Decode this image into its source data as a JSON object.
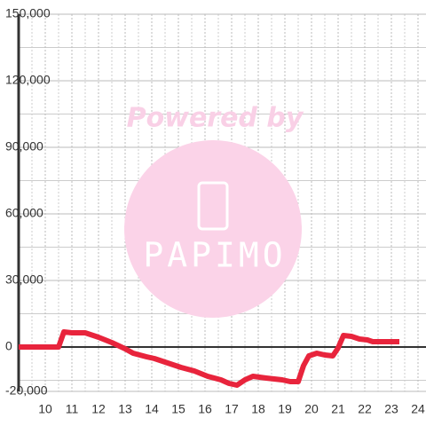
{
  "chart_data": {
    "type": "line",
    "watermark": {
      "top": "Powered by",
      "logo": "PAPIMO"
    },
    "x": [
      9,
      10.5,
      10.7,
      11,
      11.5,
      12,
      12.5,
      13,
      13.3,
      13.8,
      14.1,
      14.6,
      15.1,
      15.6,
      16.1,
      16.6,
      16.9,
      17.2,
      17.5,
      17.8,
      18.3,
      18.9,
      19.2,
      19.5,
      19.7,
      19.9,
      20.2,
      20.5,
      20.8,
      21,
      21.2,
      21.5,
      21.8,
      22.1,
      22.3,
      23.3
    ],
    "series": [
      {
        "color": "#e8243c",
        "values": [
          0,
          0,
          6800,
          6400,
          6400,
          4400,
          2000,
          -800,
          -2800,
          -4400,
          -5200,
          -7200,
          -9200,
          -10800,
          -13200,
          -14800,
          -16400,
          -17200,
          -14800,
          -13200,
          -14000,
          -14800,
          -15600,
          -15600,
          -8400,
          -4000,
          -2800,
          -3600,
          -4000,
          -400,
          5200,
          4800,
          3600,
          3200,
          2400,
          2400
        ]
      }
    ],
    "xlim": [
      9,
      24.3
    ],
    "ylim": [
      -20000,
      150000
    ],
    "xticks": [
      10,
      11,
      12,
      13,
      14,
      15,
      16,
      17,
      18,
      19,
      20,
      21,
      22,
      23,
      24
    ],
    "yticks": [
      {
        "value": 150000,
        "label": "150,000"
      },
      {
        "value": 120000,
        "label": "120,000"
      },
      {
        "value": 90000,
        "label": "90,000"
      },
      {
        "value": 60000,
        "label": "60,000"
      },
      {
        "value": 30000,
        "label": "30,000"
      },
      0,
      {
        "value": -20000,
        "label": "-20,000"
      }
    ],
    "y_minor_grid": [
      -15000,
      15000,
      45000,
      75000,
      105000,
      135000
    ],
    "x_minor_grid": [
      9.5,
      10.5,
      11.5,
      12.5,
      13.5,
      14.5,
      15.5,
      16.5,
      17.5,
      18.5,
      19.5,
      20.5,
      21.5,
      22.5,
      23.5
    ],
    "grid": true
  }
}
